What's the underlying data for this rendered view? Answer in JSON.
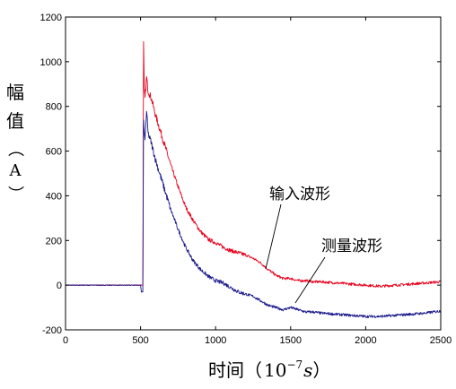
{
  "chart_data": {
    "type": "line",
    "xlabel_main": "时间（",
    "xlabel_base": "10",
    "xlabel_exp": "−7",
    "xlabel_unit": "s",
    "xlabel_close": "）",
    "ylabel_chars": [
      "幅",
      "值",
      "（",
      "A",
      "）"
    ],
    "xlim": [
      0,
      2500
    ],
    "ylim": [
      -200,
      1200
    ],
    "xticks": [
      0,
      500,
      1000,
      1500,
      2000,
      2500
    ],
    "yticks": [
      -200,
      0,
      200,
      400,
      600,
      800,
      1000,
      1200
    ],
    "grid": false,
    "legend": "none",
    "annotations": [
      {
        "text": "输入波形",
        "series": "input",
        "point": [
          1360,
          70
        ]
      },
      {
        "text": "测量波形",
        "series": "measured",
        "point": [
          1500,
          -80
        ]
      }
    ],
    "series": [
      {
        "id": "input",
        "color": "#e8001c",
        "x": [
          0,
          500,
          515,
          520,
          525,
          530,
          540,
          550,
          570,
          600,
          650,
          700,
          750,
          800,
          850,
          900,
          950,
          1000,
          1050,
          1100,
          1150,
          1200,
          1250,
          1300,
          1350,
          1400,
          1450,
          1500,
          1550,
          1600,
          1650,
          1700,
          1800,
          1900,
          2000,
          2100,
          2200,
          2300,
          2400,
          2500
        ],
        "y": [
          0,
          0,
          0,
          1090,
          880,
          840,
          930,
          870,
          840,
          760,
          650,
          540,
          440,
          350,
          290,
          240,
          205,
          190,
          170,
          155,
          145,
          135,
          120,
          100,
          70,
          45,
          30,
          30,
          20,
          20,
          15,
          15,
          10,
          5,
          0,
          -5,
          0,
          5,
          10,
          15
        ]
      },
      {
        "id": "measured",
        "color": "#1a1a8c",
        "x": [
          0,
          500,
          505,
          515,
          520,
          525,
          530,
          540,
          550,
          570,
          600,
          650,
          700,
          750,
          800,
          850,
          900,
          950,
          1000,
          1050,
          1100,
          1150,
          1200,
          1250,
          1300,
          1350,
          1400,
          1450,
          1500,
          1550,
          1600,
          1650,
          1700,
          1800,
          1900,
          2000,
          2100,
          2200,
          2300,
          2400,
          2500
        ],
        "y": [
          0,
          0,
          -30,
          -30,
          740,
          680,
          650,
          780,
          680,
          640,
          560,
          450,
          340,
          250,
          170,
          110,
          70,
          40,
          20,
          10,
          -10,
          -30,
          -40,
          -50,
          -70,
          -90,
          -100,
          -110,
          -100,
          -110,
          -120,
          -120,
          -125,
          -130,
          -135,
          -140,
          -140,
          -135,
          -130,
          -125,
          -115
        ]
      }
    ]
  }
}
